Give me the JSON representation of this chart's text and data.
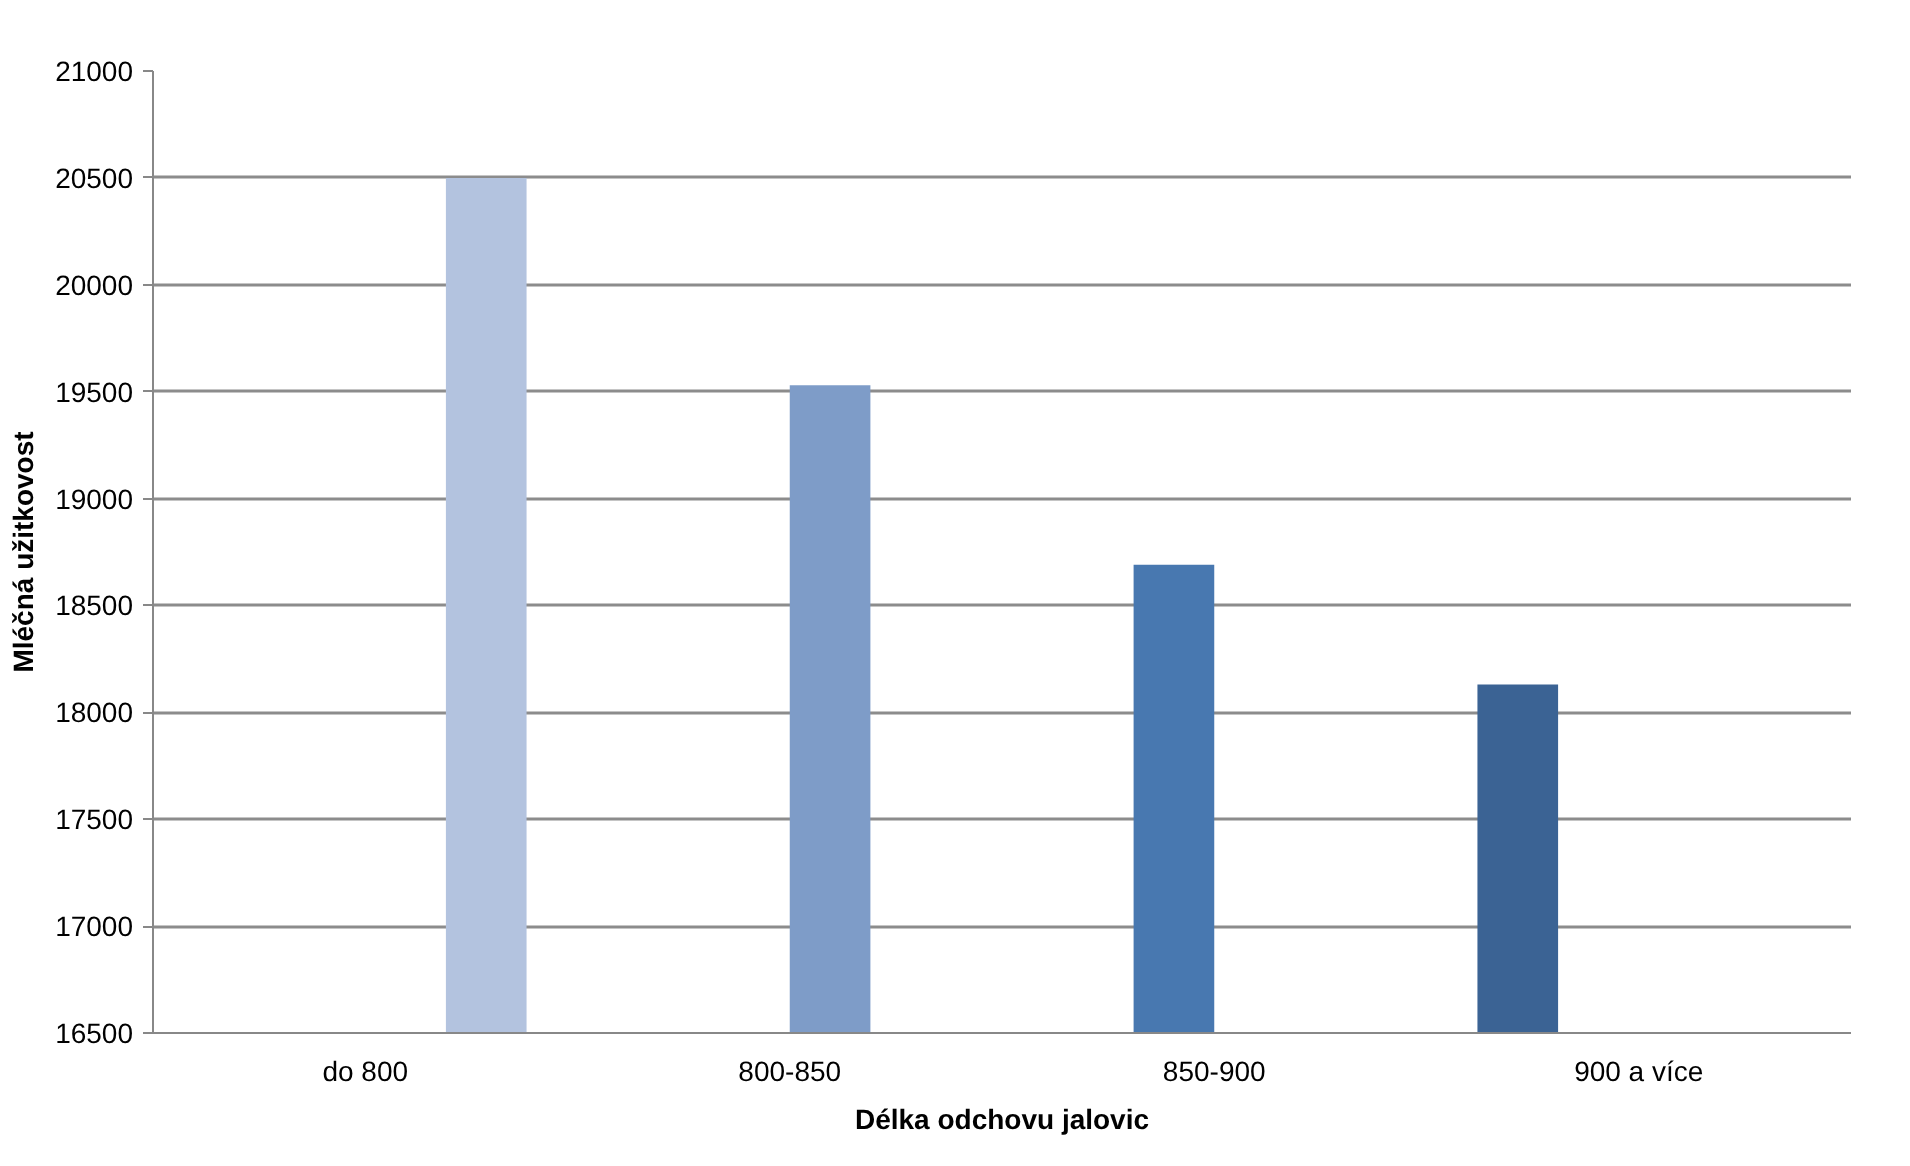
{
  "chart_data": {
    "type": "bar",
    "xlabel": "Délka odchovu jalovic",
    "ylabel": "Mléčná užitkovost",
    "categories": [
      "do 800",
      "800-850",
      "850-900",
      "900 a více"
    ],
    "series": [
      {
        "color": "#3b6394",
        "values": [
          null,
          null,
          null,
          18130
        ]
      },
      {
        "color": "#4878b0",
        "values": [
          null,
          null,
          18690,
          null
        ]
      },
      {
        "color": "#7e9cc8",
        "values": [
          null,
          19530,
          null,
          null
        ]
      },
      {
        "color": "#b3c3df",
        "values": [
          20500,
          null,
          null,
          null
        ]
      }
    ],
    "ylim": [
      16500,
      21000
    ],
    "yticks": [
      16500,
      17000,
      17500,
      18000,
      18500,
      19000,
      19500,
      20000,
      20500,
      21000
    ],
    "grid": "y"
  }
}
